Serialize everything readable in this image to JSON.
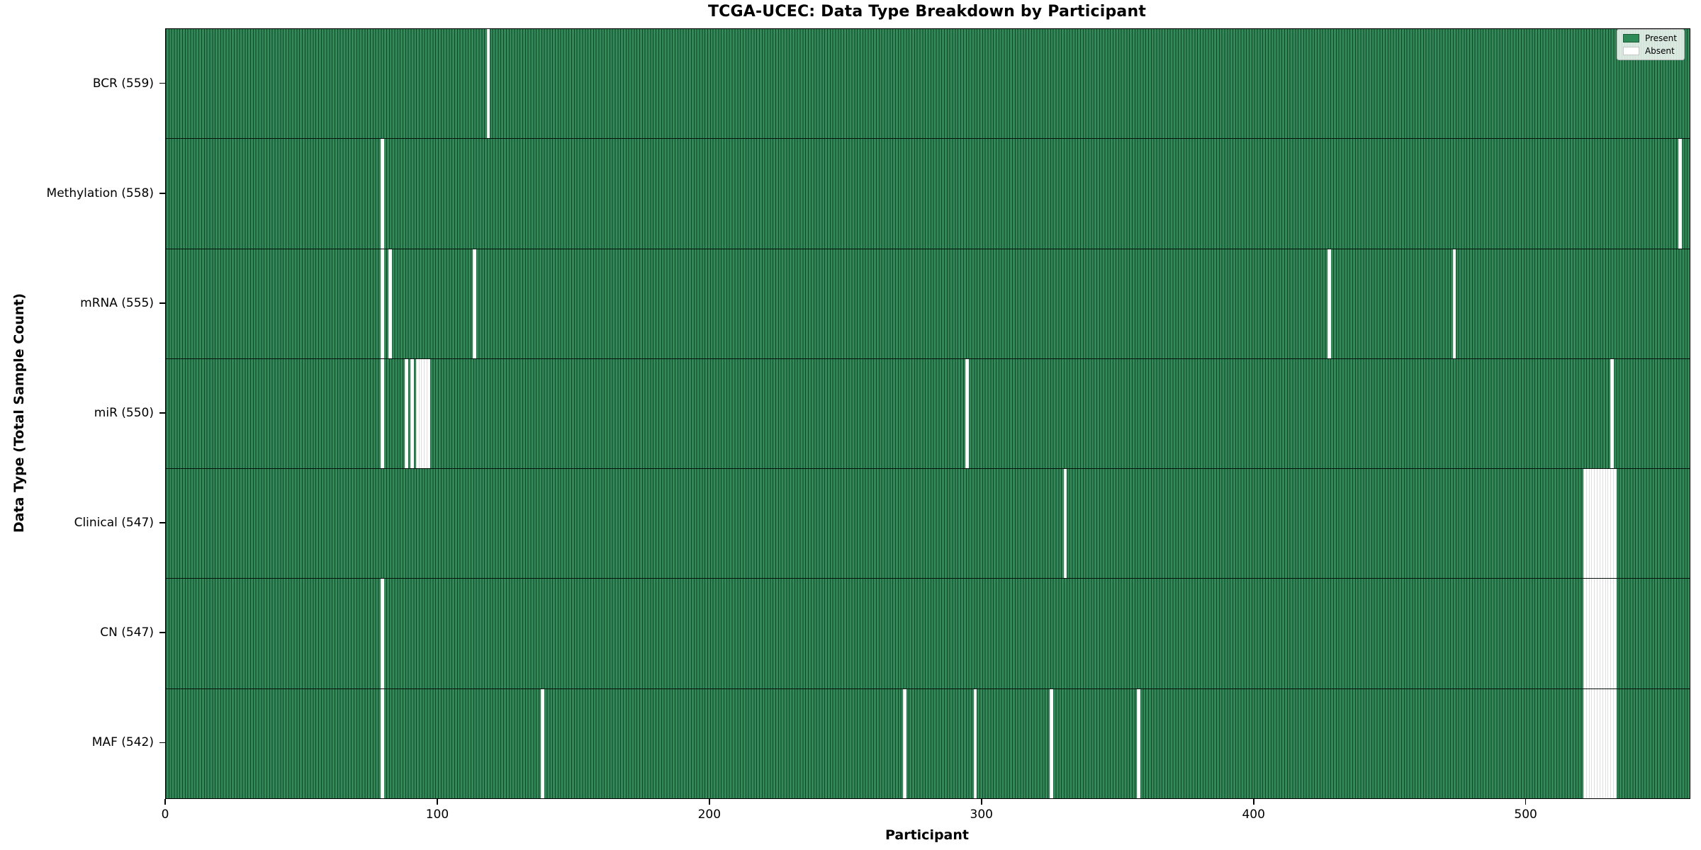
{
  "chart_data": {
    "type": "heatmap",
    "title": "TCGA-UCEC: Data Type Breakdown by Participant",
    "xlabel": "Participant",
    "ylabel": "Data Type (Total Sample Count)",
    "n_participants": 560,
    "x_ticks": [
      0,
      100,
      200,
      300,
      400,
      500
    ],
    "xlim": [
      0,
      560
    ],
    "grid": false,
    "legend_position": "upper right",
    "legend": [
      "Present",
      "Absent"
    ],
    "present_color": "#2e8b57",
    "absent_color": "#ffffff",
    "rows": [
      {
        "name": "BCR",
        "label": "BCR (559)",
        "total": 559,
        "absent": [
          118
        ]
      },
      {
        "name": "Methylation",
        "label": "Methylation (558)",
        "total": 558,
        "absent": [
          79,
          556
        ]
      },
      {
        "name": "mRNA",
        "label": "mRNA (555)",
        "total": 555,
        "absent": [
          79,
          82,
          113,
          427,
          473
        ]
      },
      {
        "name": "miR",
        "label": "miR (550)",
        "total": 550,
        "absent": [
          79,
          88,
          90,
          92,
          93,
          94,
          95,
          96,
          294,
          531
        ]
      },
      {
        "name": "Clinical",
        "label": "Clinical (547)",
        "total": 547,
        "absent": [
          330,
          521,
          522,
          523,
          524,
          525,
          526,
          527,
          528,
          529,
          530,
          531,
          532
        ]
      },
      {
        "name": "CN",
        "label": "CN (547)",
        "total": 547,
        "absent": [
          79,
          521,
          522,
          523,
          524,
          525,
          526,
          527,
          528,
          529,
          530,
          531,
          532
        ]
      },
      {
        "name": "MAF",
        "label": "MAF (542)",
        "total": 542,
        "absent": [
          79,
          138,
          271,
          297,
          325,
          357,
          521,
          522,
          523,
          524,
          525,
          526,
          527,
          528,
          529,
          530,
          531,
          532
        ]
      }
    ]
  }
}
